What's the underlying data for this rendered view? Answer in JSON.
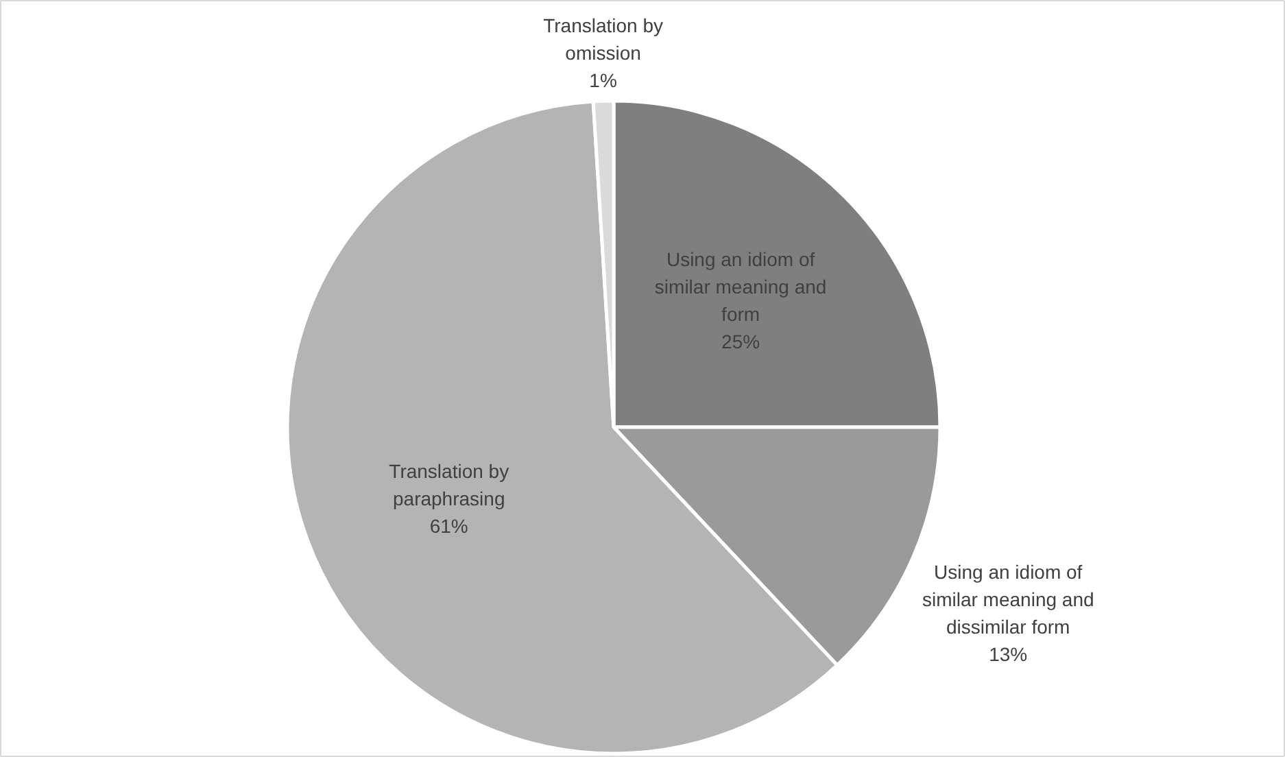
{
  "chart_data": {
    "type": "pie",
    "categories": [
      "Using an idiom of similar meaning and form",
      "Using an idiom of similar meaning and dissimilar form",
      "Translation by paraphrasing",
      "Translation by omission"
    ],
    "values": [
      25,
      13,
      61,
      1
    ],
    "colors": [
      "#7f7f7f",
      "#9a9a9a",
      "#b4b4b4",
      "#dadada"
    ],
    "value_labels": [
      "25%",
      "13%",
      "61%",
      "1%"
    ]
  }
}
